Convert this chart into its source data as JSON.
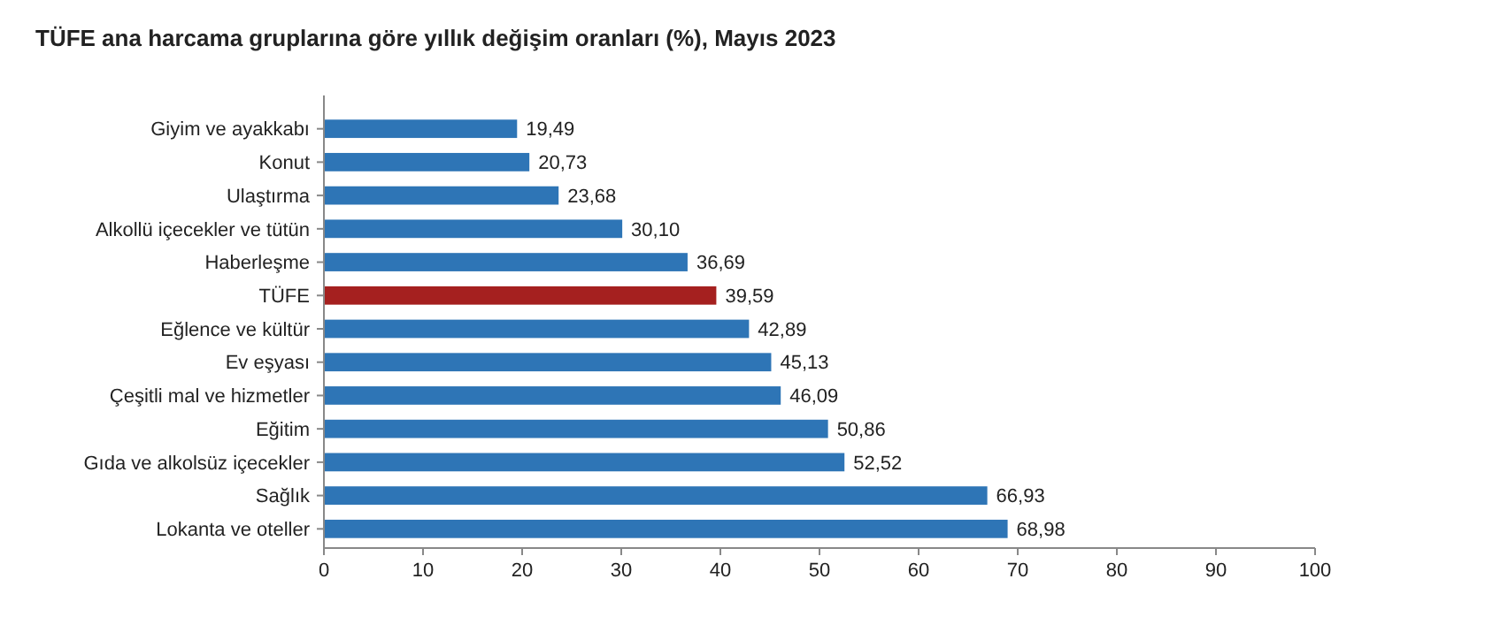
{
  "chart_data": {
    "type": "bar",
    "orientation": "horizontal",
    "title": "TÜFE ana harcama gruplarına göre yıllık değişim oranları (%), Mayıs 2023",
    "categories": [
      "Giyim ve ayakkabı",
      "Konut",
      "Ulaştırma",
      "Alkollü içecekler ve tütün",
      "Haberleşme",
      "TÜFE",
      "Eğlence ve kültür",
      "Ev eşyası",
      "Çeşitli mal ve hizmetler",
      "Eğitim",
      "Gıda ve alkolsüz içecekler",
      "Sağlık",
      "Lokanta ve oteller"
    ],
    "values": [
      19.49,
      20.73,
      23.68,
      30.1,
      36.69,
      39.59,
      42.89,
      45.13,
      46.09,
      50.86,
      52.52,
      66.93,
      68.98
    ],
    "value_labels": [
      "19,49",
      "20,73",
      "23,68",
      "30,10",
      "36,69",
      "39,59",
      "42,89",
      "45,13",
      "46,09",
      "50,86",
      "52,52",
      "66,93",
      "68,98"
    ],
    "colors": [
      "#2e75b6",
      "#2e75b6",
      "#2e75b6",
      "#2e75b6",
      "#2e75b6",
      "#a5201f",
      "#2e75b6",
      "#2e75b6",
      "#2e75b6",
      "#2e75b6",
      "#2e75b6",
      "#2e75b6",
      "#2e75b6"
    ],
    "xlim": [
      0,
      100
    ],
    "xticks": [
      0,
      10,
      20,
      30,
      40,
      50,
      60,
      70,
      80,
      90,
      100
    ]
  }
}
